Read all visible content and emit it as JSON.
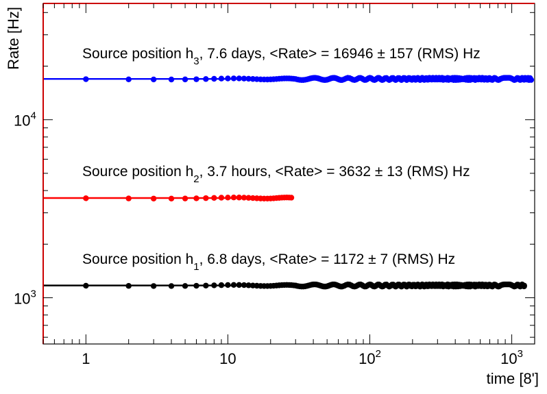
{
  "chart_data": {
    "type": "scatter",
    "xlabel": "time [8']",
    "ylabel": "Rate [Hz]",
    "xscale": "log",
    "yscale": "log",
    "xlim": [
      0.5,
      1450
    ],
    "ylim": [
      550,
      45000
    ],
    "x_ticks": [
      {
        "value": 1,
        "base": "1",
        "exp": ""
      },
      {
        "value": 10,
        "base": "10",
        "exp": ""
      },
      {
        "value": 100,
        "base": "10",
        "exp": "2"
      },
      {
        "value": 1000,
        "base": "10",
        "exp": "3"
      }
    ],
    "y_ticks": [
      {
        "value": 1000,
        "base": "10",
        "exp": "3"
      },
      {
        "value": 10000,
        "base": "10",
        "exp": "4"
      }
    ],
    "grid": false,
    "series": [
      {
        "key": "h3",
        "color": "#0000ff",
        "label": {
          "pre": "Source position h",
          "sub": "3",
          "post": ", 7.6 days, <Rate> = 16946 ± 157 (RMS) Hz"
        },
        "mean": 16946,
        "x_range": [
          1,
          1370
        ],
        "line_from": 0.5
      },
      {
        "key": "h2",
        "color": "#ff0000",
        "label": {
          "pre": "Source position h",
          "sub": "2",
          "post": ", 3.7 hours, <Rate> = 3632 ± 13 (RMS) Hz"
        },
        "mean": 3632,
        "x_range": [
          1,
          28
        ],
        "line_from": 0.5
      },
      {
        "key": "h1",
        "color": "#000000",
        "label": {
          "pre": "Source position h",
          "sub": "1",
          "post": ", 6.8 days, <Rate> = 1172 ± 7 (RMS) Hz"
        },
        "mean": 1172,
        "x_range": [
          1,
          1224
        ],
        "line_from": 0.5
      }
    ]
  }
}
